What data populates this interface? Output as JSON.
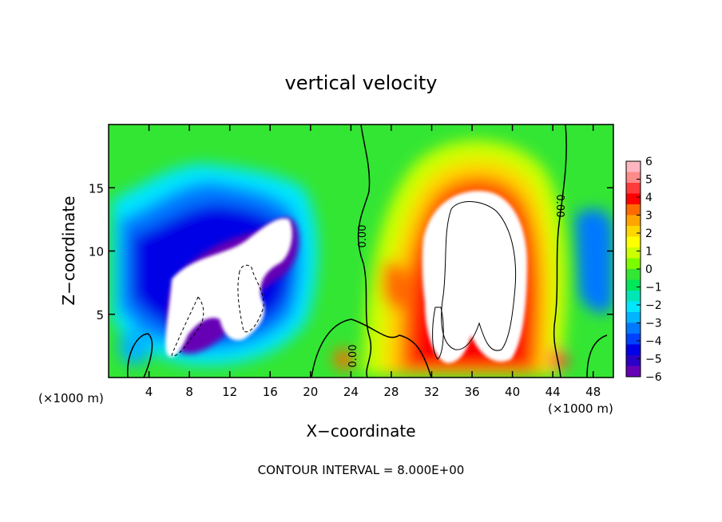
{
  "chart_data": {
    "type": "heatmap",
    "title": "vertical velocity",
    "xlabel": "X−coordinate",
    "ylabel": "Z−coordinate",
    "x_unit_left": "(×1000 m)",
    "x_unit_right": "(×1000 m)",
    "footer": "CONTOUR INTERVAL = 8.000E+00",
    "xlim": [
      0,
      50
    ],
    "ylim": [
      0,
      20
    ],
    "xticks": [
      4,
      8,
      12,
      16,
      20,
      24,
      28,
      32,
      36,
      40,
      44,
      48
    ],
    "yticks": [
      5,
      10,
      15
    ],
    "colorbar": {
      "range": [
        -6,
        6
      ],
      "ticks": [
        "6",
        "5",
        "4",
        "3",
        "2",
        "1",
        "0",
        "−1",
        "−2",
        "−3",
        "−4",
        "−5",
        "−6"
      ],
      "colors": [
        "#ffb6c1",
        "#ff8a8a",
        "#ff3a3a",
        "#ff0000",
        "#ff6a00",
        "#ffa500",
        "#ffd700",
        "#ffff00",
        "#ccff00",
        "#7dfc00",
        "#33e633",
        "#00e65a",
        "#00e6b4",
        "#00e6ff",
        "#00b4ff",
        "#0078ff",
        "#0040ff",
        "#0000e6",
        "#2a00c8",
        "#6600b4"
      ]
    },
    "contour_labels": [
      "0.00",
      "0.00",
      "0.00"
    ],
    "features": [
      {
        "name": "downdraft",
        "sign": "negative",
        "center": [
          11,
          8
        ],
        "saturated": true
      },
      {
        "name": "updraft",
        "sign": "positive",
        "center": [
          36,
          10
        ],
        "saturated": true
      }
    ]
  }
}
